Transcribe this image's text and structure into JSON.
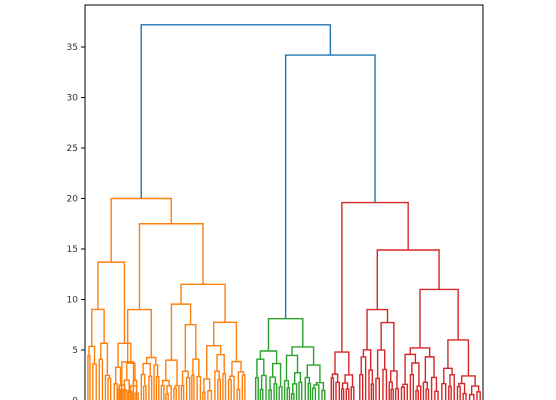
{
  "chart_data": {
    "type": "dendrogram",
    "title": "",
    "xlabel": "",
    "ylabel": "",
    "ylim": [
      0,
      39
    ],
    "grid": false,
    "yticks": [
      0,
      5,
      10,
      15,
      20,
      25,
      30,
      35
    ],
    "ytick_labels": [
      "0",
      "5",
      "10",
      "15",
      "20",
      "25",
      "30",
      "35"
    ],
    "colors": {
      "above_threshold": "#1f77b4",
      "cluster_1": "#ff7f0e",
      "cluster_2": "#2ca02c",
      "cluster_3": "#d62728"
    },
    "top_merges": [
      {
        "height": 37.2,
        "color": "above_threshold",
        "joins": [
          "cluster_1",
          "merge_2_3"
        ]
      },
      {
        "height": 34.2,
        "color": "above_threshold",
        "joins": [
          "cluster_2",
          "cluster_3"
        ]
      }
    ],
    "clusters": [
      {
        "key": "cluster_1",
        "root_height": 20.0,
        "sub_merges": [
          13.7,
          17.5,
          11.5,
          9.0,
          7.0,
          6.8,
          5.8
        ]
      },
      {
        "key": "cluster_2",
        "root_height": 8.1,
        "sub_merges": [
          5.3,
          4.9,
          3.0,
          2.7
        ]
      },
      {
        "key": "cluster_3",
        "root_height": 19.6,
        "sub_merges": [
          14.9,
          11.0,
          9.0,
          6.0,
          5.2,
          4.8
        ]
      }
    ]
  }
}
